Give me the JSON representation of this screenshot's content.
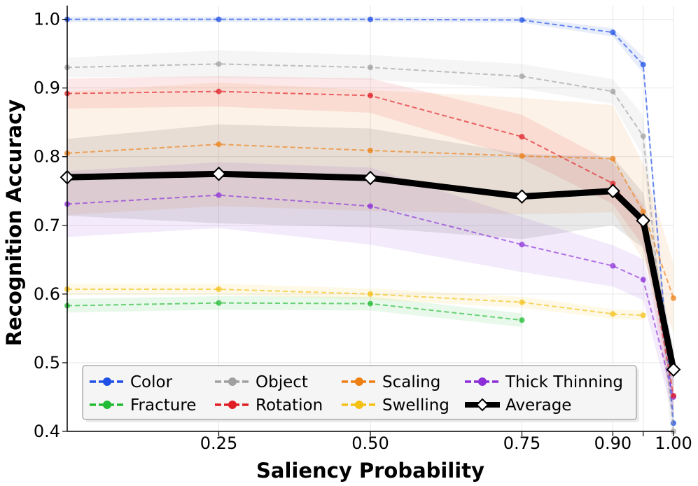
{
  "chart_data": {
    "type": "line",
    "xlabel": "Saliency Probability",
    "ylabel": "Recognition Accuracy",
    "xlim": [
      0.0,
      1.0
    ],
    "ylim": [
      0.4,
      1.02
    ],
    "x_ticks": [
      0.25,
      0.5,
      0.75,
      0.9,
      1.0
    ],
    "x_tick_labels": [
      "0.25",
      "0.50",
      "0.75",
      "0.90",
      "1.00"
    ],
    "y_ticks": [
      0.4,
      0.5,
      0.6,
      0.7,
      0.8,
      0.9,
      1.0
    ],
    "y_tick_labels": [
      "0.4",
      "0.5",
      "0.6",
      "0.7",
      "0.8",
      "0.9",
      "1.0"
    ],
    "grid": true,
    "legend_position": "bottom-left",
    "series": [
      {
        "name": "Color",
        "color": "#1f4fe6",
        "x": [
          0.0,
          0.25,
          0.5,
          0.75,
          0.9,
          0.95,
          1.0
        ],
        "values": [
          1.0,
          1.0,
          1.0,
          0.999,
          0.981,
          0.934,
          0.412
        ],
        "band": [
          0.004,
          0.004,
          0.004,
          0.004,
          0.006,
          0.012,
          0.02
        ]
      },
      {
        "name": "Object",
        "color": "#a0a0a0",
        "x": [
          0.0,
          0.25,
          0.5,
          0.75,
          0.9,
          0.95,
          1.0
        ],
        "values": [
          0.93,
          0.935,
          0.93,
          0.917,
          0.895,
          0.83,
          0.4
        ],
        "band": [
          0.014,
          0.02,
          0.018,
          0.018,
          0.018,
          0.03,
          0.04
        ]
      },
      {
        "name": "Scaling",
        "color": "#ee7f14",
        "x": [
          0.0,
          0.25,
          0.5,
          0.75,
          0.9,
          0.95,
          1.0
        ],
        "values": [
          0.805,
          0.818,
          0.809,
          0.801,
          0.797,
          0.72,
          0.594
        ],
        "band": [
          0.09,
          0.09,
          0.088,
          0.085,
          0.078,
          0.07,
          0.05
        ]
      },
      {
        "name": "Thick Thinning",
        "color": "#8c2fd8",
        "x": [
          0.0,
          0.25,
          0.5,
          0.75,
          0.9,
          0.95,
          1.0
        ],
        "values": [
          0.731,
          0.744,
          0.728,
          0.672,
          0.641,
          0.621,
          0.45
        ],
        "band": [
          0.048,
          0.048,
          0.056,
          0.04,
          0.03,
          0.03,
          0.03
        ]
      },
      {
        "name": "Fracture",
        "color": "#22bb33",
        "x": [
          0.0,
          0.25,
          0.5,
          0.75
        ],
        "values": [
          0.583,
          0.587,
          0.586,
          0.562
        ],
        "band": [
          0.01,
          0.01,
          0.01,
          0.01
        ]
      },
      {
        "name": "Rotation",
        "color": "#e01e25",
        "x": [
          0.0,
          0.25,
          0.5,
          0.75,
          0.9,
          0.95,
          1.0
        ],
        "values": [
          0.892,
          0.895,
          0.889,
          0.829,
          0.761,
          0.7,
          0.452
        ],
        "band": [
          0.022,
          0.022,
          0.025,
          0.032,
          0.03,
          0.03,
          0.03
        ]
      },
      {
        "name": "Swelling",
        "color": "#f5c014",
        "x": [
          0.0,
          0.25,
          0.5,
          0.75,
          0.9,
          0.95
        ],
        "values": [
          0.607,
          0.607,
          0.6,
          0.588,
          0.571,
          0.569
        ],
        "band": [
          0.008,
          0.008,
          0.008,
          0.008,
          0.007,
          0.007
        ]
      },
      {
        "name": "Average",
        "color": "#000000",
        "x": [
          0.0,
          0.25,
          0.5,
          0.75,
          0.9,
          0.95,
          1.0
        ],
        "values": [
          0.77,
          0.775,
          0.769,
          0.742,
          0.75,
          0.707,
          0.49
        ],
        "band": [
          0.056,
          0.072,
          0.072,
          0.062,
          0.05,
          0.04,
          0.03
        ]
      }
    ],
    "legend": [
      "Color",
      "Object",
      "Scaling",
      "Thick Thinning",
      "Fracture",
      "Rotation",
      "Swelling",
      "Average"
    ]
  }
}
